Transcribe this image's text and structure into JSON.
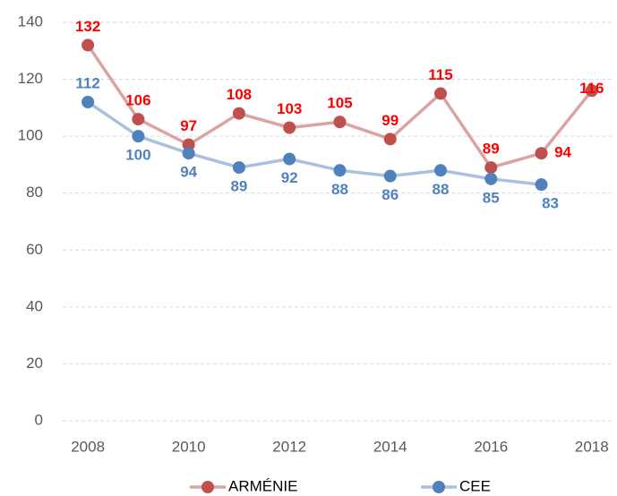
{
  "chart_data": {
    "type": "line",
    "x": [
      2008,
      2009,
      2010,
      2011,
      2012,
      2013,
      2014,
      2015,
      2016,
      2017,
      2018
    ],
    "series": [
      {
        "name": "ARMÉNIE",
        "color": "#c0504d",
        "line_color": "#dba3a2",
        "label_color": "#ff0000",
        "values": [
          132,
          106,
          97,
          108,
          103,
          105,
          99,
          115,
          89,
          94,
          116
        ]
      },
      {
        "name": "CEE",
        "color": "#4f81bd",
        "line_color": "#a9c1de",
        "label_color": "#4f81bd",
        "values": [
          112,
          100,
          94,
          89,
          92,
          88,
          86,
          88,
          85,
          83,
          null
        ]
      }
    ],
    "xlim": [
      2007.5,
      2018.43
    ],
    "xticks": [
      2008,
      2010,
      2012,
      2014,
      2016,
      2018
    ],
    "ylim": [
      0,
      140
    ],
    "yticks": [
      0,
      20,
      40,
      60,
      80,
      100,
      120,
      140
    ],
    "grid": true,
    "legend": "bottom"
  }
}
